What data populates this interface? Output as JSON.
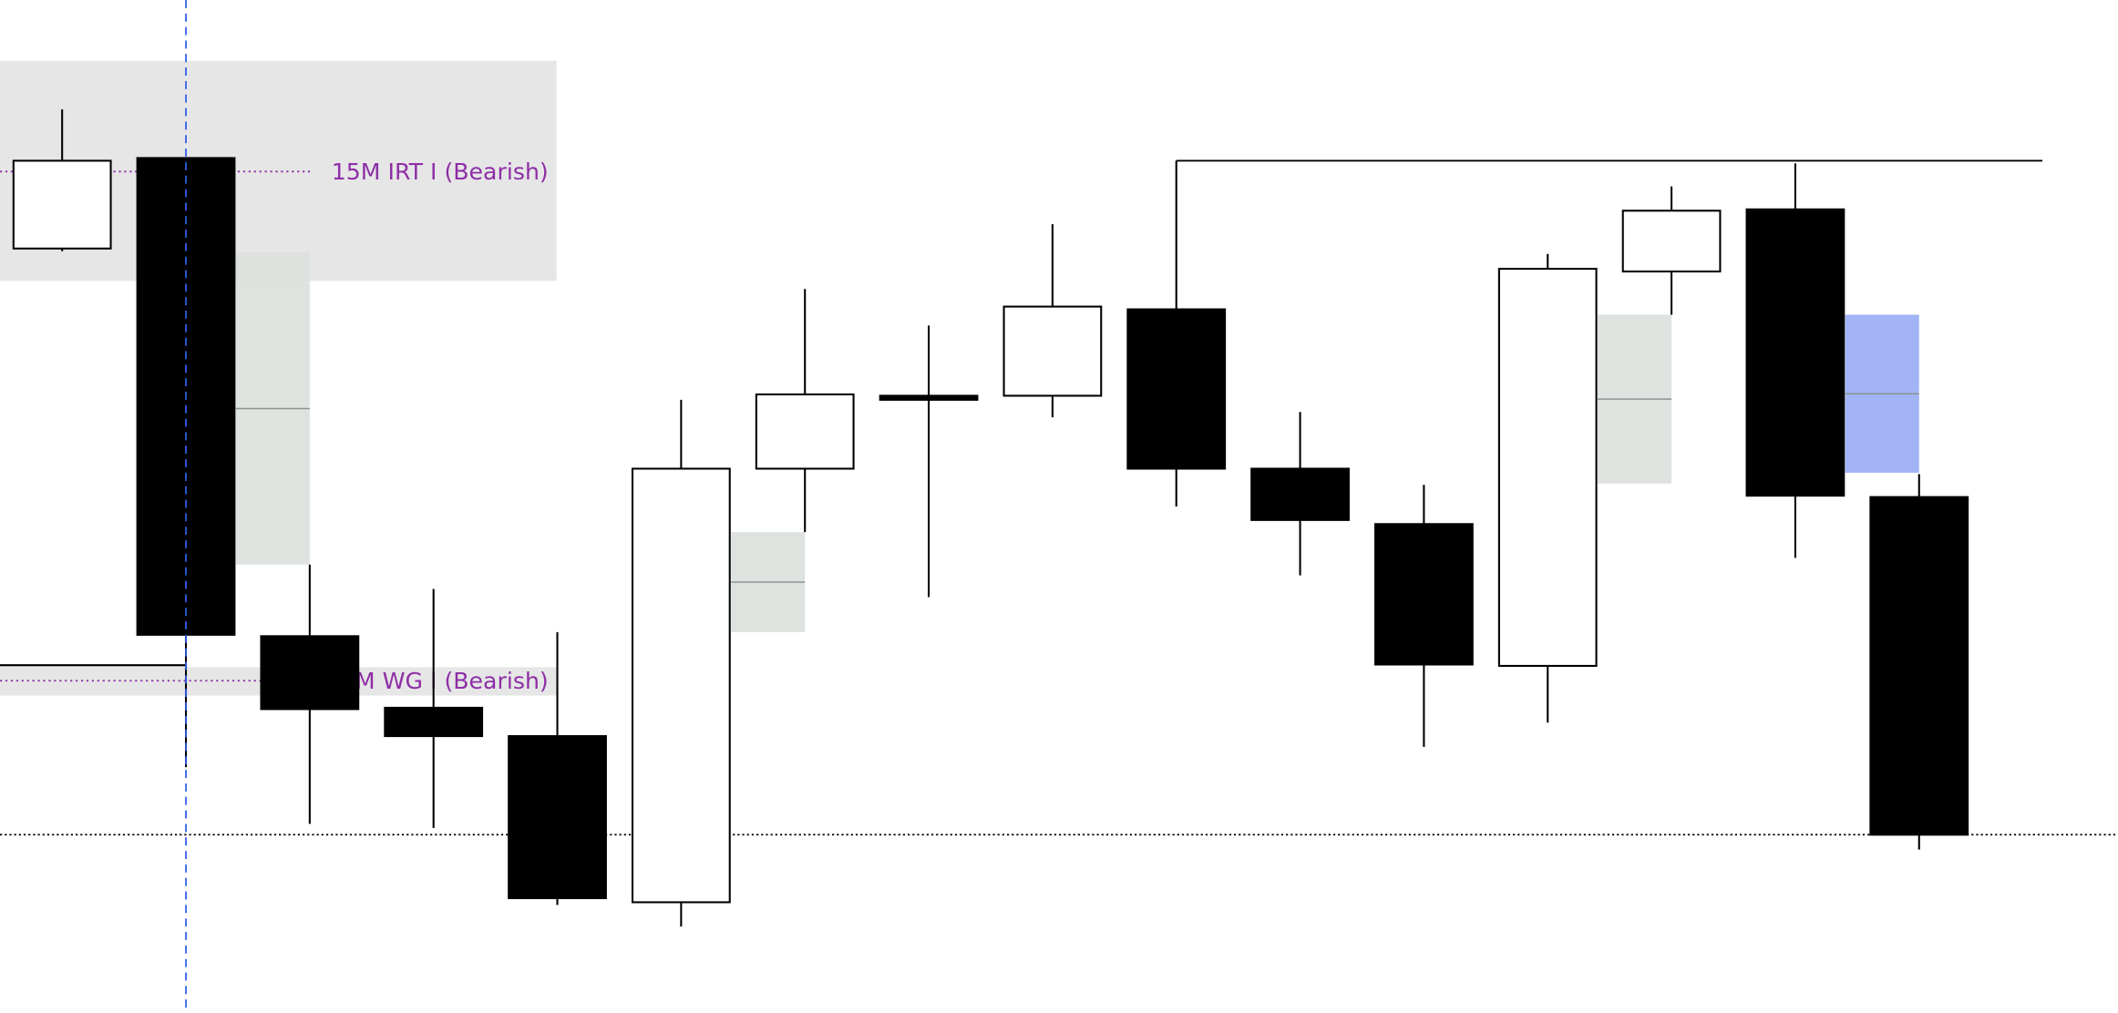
{
  "chart_data": {
    "type": "candlestick",
    "title": "",
    "xlabel": "",
    "ylabel": "",
    "grid": false,
    "price_units": "relative (no axis shown)",
    "candles": [
      {
        "open": 56.6,
        "high": 66.9,
        "low": 56.4,
        "close": 63.1
      },
      {
        "open": 63.3,
        "high": 63.3,
        "low": 18.2,
        "close": 28.0
      },
      {
        "open": 27.9,
        "high": 33.2,
        "low": 14.0,
        "close": 22.5
      },
      {
        "open": 22.6,
        "high": 31.4,
        "low": 13.7,
        "close": 20.5
      },
      {
        "open": 20.5,
        "high": 28.2,
        "low": 8.0,
        "close": 8.5
      },
      {
        "open": 8.2,
        "high": 45.4,
        "low": 6.4,
        "close": 40.3
      },
      {
        "open": 40.3,
        "high": 53.6,
        "low": 35.6,
        "close": 45.8
      },
      {
        "open": 45.7,
        "high": 50.9,
        "low": 30.8,
        "close": 45.4
      },
      {
        "open": 45.7,
        "high": 58.4,
        "low": 44.1,
        "close": 52.3
      },
      {
        "open": 52.1,
        "high": 63.1,
        "low": 37.5,
        "close": 40.3
      },
      {
        "open": 40.3,
        "high": 44.5,
        "low": 32.4,
        "close": 36.5
      },
      {
        "open": 36.2,
        "high": 39.1,
        "low": 19.7,
        "close": 25.8
      },
      {
        "open": 25.7,
        "high": 56.2,
        "low": 21.5,
        "close": 55.1
      },
      {
        "open": 54.9,
        "high": 61.2,
        "low": 51.7,
        "close": 59.4
      },
      {
        "open": 59.5,
        "high": 62.9,
        "low": 33.7,
        "close": 38.3
      },
      {
        "open": 38.2,
        "high": 39.9,
        "low": 12.1,
        "close": 13.2
      }
    ],
    "zones": [
      {
        "label": "15M IRT I (Bearish)",
        "top": 70.5,
        "bottom": 54.2,
        "level": 62.3,
        "from_candle": 0,
        "color": "#e6e6e6",
        "label_color": "#8e2fa6"
      },
      {
        "label": "15M WG I (Bearish)",
        "top": 25.6,
        "bottom": 23.5,
        "level": 24.6,
        "from_candle": 0,
        "color": "#e6e6e6",
        "label_color": "#8e2fa6"
      }
    ],
    "gaps": [
      {
        "after_candle": 1,
        "top": 56.3,
        "bottom": 33.2,
        "color": "#dce1dd"
      },
      {
        "after_candle": 5,
        "top": 35.6,
        "bottom": 28.2,
        "color": "#dce1dd"
      },
      {
        "after_candle": 12,
        "top": 51.7,
        "bottom": 39.2,
        "color": "#dce1dd"
      },
      {
        "after_candle": 14,
        "top": 51.7,
        "bottom": 40.0,
        "color": "#9db0f5"
      }
    ],
    "levels": [
      {
        "price": 63.1,
        "from_candle": 9,
        "style": "solid"
      },
      {
        "price": 25.8,
        "from_candle": 0,
        "to_candle": 1,
        "style": "solid"
      },
      {
        "price": 13.2,
        "style": "dotted"
      }
    ],
    "cursor_candle": 1,
    "colors": {
      "bull": "#ffffff",
      "bear": "#000000",
      "cursor": "#2f5fe8",
      "zone_label": "#8e2fa6"
    }
  }
}
